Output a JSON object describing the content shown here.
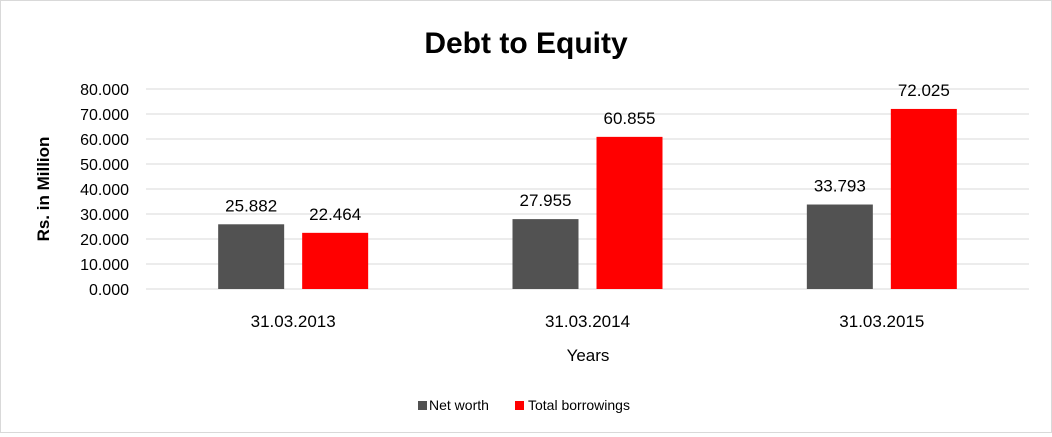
{
  "chart_data": {
    "type": "bar",
    "title": "Debt to Equity",
    "xlabel": "Years",
    "ylabel": "Rs. in Million",
    "categories": [
      "31.03.2013",
      "31.03.2014",
      "31.03.2015"
    ],
    "series": [
      {
        "name": "Net worth",
        "values": [
          25.882,
          27.955,
          33.793
        ],
        "color": "#525252",
        "labels": [
          "25.882",
          "27.955",
          "33.793"
        ]
      },
      {
        "name": "Total borrowings",
        "values": [
          22.464,
          60.855,
          72.025
        ],
        "color": "#ff0000",
        "labels": [
          "22.464",
          "60.855",
          "72.025"
        ]
      }
    ],
    "ylim": [
      0,
      80
    ],
    "yticks": [
      "0.000",
      "10.000",
      "20.000",
      "30.000",
      "40.000",
      "50.000",
      "60.000",
      "70.000",
      "80.000"
    ],
    "grid": true,
    "gridline_color": "#d9d9d9",
    "legend_position": "bottom"
  }
}
